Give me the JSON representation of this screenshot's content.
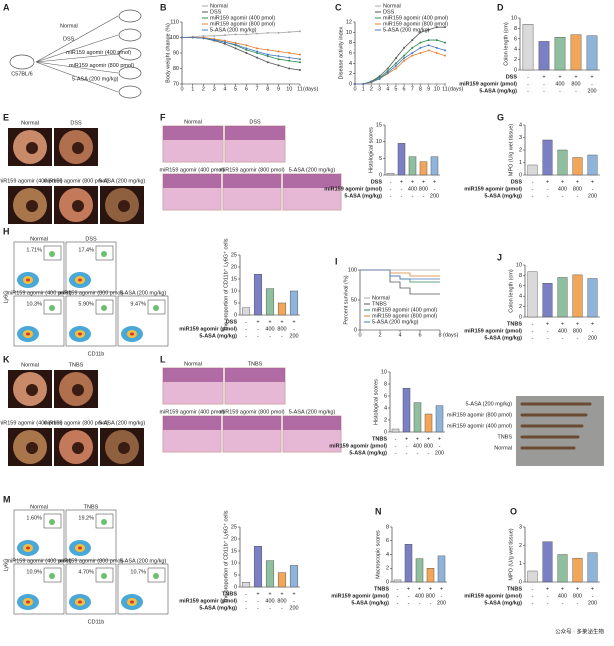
{
  "panel_letters": [
    "A",
    "B",
    "C",
    "D",
    "E",
    "F",
    "G",
    "H",
    "I",
    "J",
    "K",
    "L",
    "M",
    "N",
    "O"
  ],
  "schematic": {
    "mouse": "C57BL/6",
    "groups": [
      "Normal",
      "DSS",
      "miR159 agomir (400 pmol)",
      "miR159 agomir (800 pmol)",
      "5-ASA (200 mg/kg)"
    ]
  },
  "endoscopy_E": [
    "Normal",
    "DSS",
    "miR159 agomir (400 pmol)",
    "miR159 agomir (800 pmol)",
    "5-ASA (200 mg/kg)"
  ],
  "histology_F": [
    "Normal",
    "DSS",
    "miR159 agomir (400 pmol)",
    "miR159 agomir (800 pmol)",
    "5-ASA (200 mg/kg)"
  ],
  "flow_H": {
    "ylabel": "Ly6G",
    "xlabel": "CD11b",
    "plots": [
      {
        "label": "Normal",
        "pct": "1.71%"
      },
      {
        "label": "DSS",
        "pct": "17.4%"
      },
      {
        "label": "miR159 agomir (400 pmol)",
        "pct": "10.3%"
      },
      {
        "label": "miR159 agomir (800 pmol)",
        "pct": "5.90%"
      },
      {
        "label": "5-ASA (200 mg/kg)",
        "pct": "9.47%"
      }
    ]
  },
  "endoscopy_K": [
    "Normal",
    "TNBS",
    "miR159 agomir (400 pmol)",
    "miR159 agomir (800 pmol)",
    "5-ASA (200 mg/kg)"
  ],
  "histology_L": [
    "Normal",
    "TNBS",
    "miR159 agomir (400 pmol)",
    "miR159 agomir (800 pmol)",
    "5-ASA (200 mg/kg)"
  ],
  "photo_L": [
    "5-ASA (200 mg/kg)",
    "miR159 agomir (800 pmol)",
    "miR159 agomir (400 pmol)",
    "TNBS",
    "Normal"
  ],
  "flow_M": {
    "ylabel": "Ly6G",
    "xlabel": "CD11b",
    "plots": [
      {
        "label": "Normal",
        "pct": "1.60%"
      },
      {
        "label": "TNBS",
        "pct": "19.2%"
      },
      {
        "label": "miR159 agomir (400 pmol)",
        "pct": "10.9%"
      },
      {
        "label": "miR159 agomir (800 pmol)",
        "pct": "4.70%"
      },
      {
        "label": "5-ASA (200 mg/kg)",
        "pct": "10.7%"
      }
    ]
  },
  "watermark": "公众号 · 多莱泌生物",
  "chart_data": [
    {
      "type": "line",
      "ylabel": "Body weight change (%)",
      "xlabel": "(days)",
      "x": [
        0,
        1,
        2,
        3,
        4,
        5,
        6,
        7,
        8,
        9,
        10,
        11
      ],
      "xlim": [
        0,
        11
      ],
      "xticks": [
        0,
        1,
        2,
        3,
        4,
        5,
        6,
        7,
        8,
        9,
        10,
        11
      ],
      "ylim": [
        70,
        110
      ],
      "yticks": [
        70,
        80,
        90,
        100,
        110
      ],
      "series": [
        {
          "name": "Normal",
          "color": "#aaaaaa",
          "values": [
            100,
            100.5,
            101,
            101,
            101.5,
            102,
            102,
            102.5,
            103,
            103,
            103.5,
            104
          ]
        },
        {
          "name": "DSS",
          "color": "#555555",
          "values": [
            100,
            100,
            99.5,
            98,
            96,
            93,
            90,
            87,
            84,
            82,
            80,
            79
          ]
        },
        {
          "name": "miR159 agomir (400 pmol)",
          "color": "#2e8b57",
          "values": [
            100,
            100,
            99.5,
            98.5,
            97,
            95,
            92,
            90,
            88,
            86,
            85,
            84
          ]
        },
        {
          "name": "miR159 agomir (800 pmol)",
          "color": "#e08030",
          "values": [
            100,
            100,
            100,
            99,
            98,
            96.5,
            95,
            93,
            92,
            91,
            90,
            89
          ]
        },
        {
          "name": "5-ASA (200 mg/kg)",
          "color": "#4a78c0",
          "values": [
            100,
            100,
            99.5,
            98.5,
            97,
            95.5,
            93,
            91,
            89,
            88,
            87,
            86
          ]
        }
      ]
    },
    {
      "type": "line",
      "ylabel": "Disease activity index",
      "xlabel": "(days)",
      "x": [
        0,
        1,
        2,
        3,
        4,
        5,
        6,
        7,
        8,
        9,
        10,
        11
      ],
      "xlim": [
        0,
        11
      ],
      "xticks": [
        0,
        1,
        2,
        3,
        4,
        5,
        6,
        7,
        8,
        9,
        10,
        11
      ],
      "ylim": [
        0,
        12
      ],
      "yticks": [
        0,
        2,
        4,
        6,
        8,
        10,
        12
      ],
      "series": [
        {
          "name": "Normal",
          "color": "#aaaaaa",
          "values": [
            0,
            0,
            0,
            0,
            0,
            0,
            0,
            0,
            0,
            0,
            0,
            0
          ]
        },
        {
          "name": "DSS",
          "color": "#555555",
          "values": [
            0,
            0,
            0.5,
            1.5,
            3,
            5,
            7,
            8.5,
            10,
            10.5,
            11,
            11
          ]
        },
        {
          "name": "miR159 agomir (400 pmol)",
          "color": "#2e8b57",
          "values": [
            0,
            0,
            0.5,
            1.2,
            2.5,
            4,
            5.5,
            7,
            8,
            8.5,
            8.5,
            8
          ]
        },
        {
          "name": "miR159 agomir (800 pmol)",
          "color": "#e08030",
          "values": [
            0,
            0,
            0.3,
            1,
            2,
            3,
            4.5,
            5.5,
            6,
            6.5,
            6,
            5.5
          ]
        },
        {
          "name": "5-ASA (200 mg/kg)",
          "color": "#4a78c0",
          "values": [
            0,
            0,
            0.4,
            1,
            2.2,
            3.5,
            5,
            6,
            7,
            7.5,
            7,
            6.5
          ]
        }
      ]
    },
    {
      "type": "bar",
      "ylabel": "Colon length (cm)",
      "ylim": [
        0,
        10
      ],
      "yticks": [
        0,
        2,
        4,
        6,
        8,
        10
      ],
      "categories": [
        null,
        null,
        null,
        null,
        null
      ],
      "values": [
        8.8,
        5.5,
        6.3,
        6.8,
        6.6
      ],
      "colors": [
        "#d9d9d9",
        "#7b7fc4",
        "#8fbf9f",
        "#f2a65a",
        "#8fb3d9"
      ],
      "conditions": [
        {
          "label": "DSS",
          "cells": [
            "-",
            "+",
            "+",
            "+",
            "+"
          ]
        },
        {
          "label": "miR159 agomir (pmol)",
          "cells": [
            "-",
            "-",
            "400",
            "800",
            "-"
          ]
        },
        {
          "label": "5-ASA (mg/kg)",
          "cells": [
            "-",
            "-",
            "-",
            "-",
            "200"
          ]
        }
      ]
    },
    {
      "type": "bar",
      "ylabel": "Histological scores",
      "ylim": [
        0,
        15
      ],
      "yticks": [
        0,
        5,
        10,
        15
      ],
      "categories": [
        null,
        null,
        null,
        null,
        null
      ],
      "values": [
        0.5,
        9.5,
        5.5,
        4,
        5.5
      ],
      "colors": [
        "#d9d9d9",
        "#7b7fc4",
        "#8fbf9f",
        "#f2a65a",
        "#8fb3d9"
      ],
      "conditions": [
        {
          "label": "DSS",
          "cells": [
            "-",
            "+",
            "+",
            "+",
            "+"
          ]
        },
        {
          "label": "miR159 agomir (pmol)",
          "cells": [
            "-",
            "-",
            "400",
            "800",
            "-"
          ]
        },
        {
          "label": "5-ASA (mg/kg)",
          "cells": [
            "-",
            "-",
            "-",
            "-",
            "200"
          ]
        }
      ]
    },
    {
      "type": "bar",
      "ylabel": "MPO (U/g wet tissue)",
      "ylim": [
        0,
        4
      ],
      "yticks": [
        0,
        1,
        2,
        3,
        4
      ],
      "categories": [
        null,
        null,
        null,
        null,
        null
      ],
      "values": [
        0.8,
        2.8,
        2,
        1.4,
        1.6
      ],
      "colors": [
        "#d9d9d9",
        "#7b7fc4",
        "#8fbf9f",
        "#f2a65a",
        "#8fb3d9"
      ],
      "conditions": [
        {
          "label": "DSS",
          "cells": [
            "-",
            "+",
            "+",
            "+",
            "+"
          ]
        },
        {
          "label": "miR159 agomir (pmol)",
          "cells": [
            "-",
            "-",
            "400",
            "800",
            "-"
          ]
        },
        {
          "label": "5-ASA (mg/kg)",
          "cells": [
            "-",
            "-",
            "-",
            "-",
            "200"
          ]
        }
      ]
    },
    {
      "type": "bar",
      "ylabel": "The proportion of CD11b⁺ Ly6G⁺ cells",
      "ylim": [
        0,
        25
      ],
      "yticks": [
        0,
        5,
        10,
        15,
        20,
        25
      ],
      "categories": [
        null,
        null,
        null,
        null,
        null
      ],
      "values": [
        3,
        17,
        11,
        5,
        10
      ],
      "colors": [
        "#d9d9d9",
        "#7b7fc4",
        "#8fbf9f",
        "#f2a65a",
        "#8fb3d9"
      ],
      "conditions": [
        {
          "label": "DSS",
          "cells": [
            "-",
            "+",
            "+",
            "+",
            "+"
          ]
        },
        {
          "label": "miR159 agomir (pmol)",
          "cells": [
            "-",
            "-",
            "400",
            "800",
            "-"
          ]
        },
        {
          "label": "5-ASA (mg/kg)",
          "cells": [
            "-",
            "-",
            "-",
            "-",
            "200"
          ]
        }
      ]
    },
    {
      "type": "step",
      "ylabel": "Percent survival (%)",
      "xlabel": "(days)",
      "x": [
        0,
        1,
        2,
        3,
        4,
        5,
        6,
        7,
        8
      ],
      "xlim": [
        0,
        8
      ],
      "xticks": [
        0,
        2,
        4,
        6,
        8
      ],
      "ylim": [
        0,
        100
      ],
      "yticks": [
        0,
        50,
        100
      ],
      "series": [
        {
          "name": "Normal",
          "color": "#aaaaaa",
          "values": [
            100,
            100,
            100,
            100,
            100,
            100,
            100,
            100,
            100
          ]
        },
        {
          "name": "TNBS",
          "color": "#555555",
          "values": [
            100,
            100,
            100,
            80,
            70,
            60,
            60,
            60,
            60
          ]
        },
        {
          "name": "miR159 agomir (400 pmol)",
          "color": "#2e8b57",
          "values": [
            100,
            100,
            100,
            90,
            85,
            80,
            80,
            80,
            80
          ]
        },
        {
          "name": "miR159 agomir (800 pmol)",
          "color": "#e08030",
          "values": [
            100,
            100,
            100,
            95,
            95,
            90,
            90,
            90,
            90
          ]
        },
        {
          "name": "5-ASA (200 mg/kg)",
          "color": "#4a78c0",
          "values": [
            100,
            100,
            100,
            90,
            85,
            85,
            85,
            85,
            85
          ]
        }
      ]
    },
    {
      "type": "bar",
      "ylabel": "Colon length (cm)",
      "ylim": [
        0,
        10
      ],
      "yticks": [
        0,
        2,
        4,
        6,
        8,
        10
      ],
      "categories": [
        null,
        null,
        null,
        null,
        null
      ],
      "values": [
        8.7,
        6.5,
        7.6,
        8.1,
        7.4
      ],
      "colors": [
        "#d9d9d9",
        "#7b7fc4",
        "#8fbf9f",
        "#f2a65a",
        "#8fb3d9"
      ],
      "conditions": [
        {
          "label": "TNBS",
          "cells": [
            "-",
            "+",
            "+",
            "+",
            "+"
          ]
        },
        {
          "label": "miR159 agomir (pmol)",
          "cells": [
            "-",
            "-",
            "400",
            "800",
            "-"
          ]
        },
        {
          "label": "5-ASA (mg/kg)",
          "cells": [
            "-",
            "-",
            "-",
            "-",
            "200"
          ]
        }
      ]
    },
    {
      "type": "bar",
      "ylabel": "Histological scores",
      "ylim": [
        0,
        10
      ],
      "yticks": [
        0,
        2,
        4,
        6,
        8,
        10
      ],
      "categories": [
        null,
        null,
        null,
        null,
        null
      ],
      "values": [
        0.5,
        7.3,
        4.9,
        3,
        4.4
      ],
      "colors": [
        "#d9d9d9",
        "#7b7fc4",
        "#8fbf9f",
        "#f2a65a",
        "#8fb3d9"
      ],
      "conditions": [
        {
          "label": "TNBS",
          "cells": [
            "-",
            "+",
            "+",
            "+",
            "+"
          ]
        },
        {
          "label": "miR159 agomir (pmol)",
          "cells": [
            "-",
            "-",
            "400",
            "800",
            "-"
          ]
        },
        {
          "label": "5-ASA (mg/kg)",
          "cells": [
            "-",
            "-",
            "-",
            "-",
            "200"
          ]
        }
      ]
    },
    {
      "type": "bar",
      "ylabel": "The proportion of CD11b⁺ Ly6G⁺ cells",
      "ylim": [
        0,
        25
      ],
      "yticks": [
        0,
        5,
        10,
        15,
        20,
        25
      ],
      "categories": [
        null,
        null,
        null,
        null,
        null
      ],
      "values": [
        2,
        17,
        11,
        6,
        9
      ],
      "colors": [
        "#d9d9d9",
        "#7b7fc4",
        "#8fbf9f",
        "#f2a65a",
        "#8fb3d9"
      ],
      "conditions": [
        {
          "label": "TNBS",
          "cells": [
            "-",
            "+",
            "+",
            "+",
            "+"
          ]
        },
        {
          "label": "miR159 agomir (pmol)",
          "cells": [
            "-",
            "-",
            "400",
            "800",
            "-"
          ]
        },
        {
          "label": "5-ASA (mg/kg)",
          "cells": [
            "-",
            "-",
            "-",
            "-",
            "200"
          ]
        }
      ]
    },
    {
      "type": "bar",
      "ylabel": "Macroscopic scores",
      "ylim": [
        0,
        8
      ],
      "yticks": [
        0,
        2,
        4,
        6,
        8
      ],
      "categories": [
        null,
        null,
        null,
        null,
        null
      ],
      "values": [
        0.3,
        5.5,
        3.4,
        2,
        3.8
      ],
      "colors": [
        "#d9d9d9",
        "#7b7fc4",
        "#8fbf9f",
        "#f2a65a",
        "#8fb3d9"
      ],
      "conditions": [
        {
          "label": "TNBS",
          "cells": [
            "-",
            "+",
            "+",
            "+",
            "+"
          ]
        },
        {
          "label": "miR159 agomir (pmol)",
          "cells": [
            "-",
            "-",
            "400",
            "800",
            "-"
          ]
        },
        {
          "label": "5-ASA (mg/kg)",
          "cells": [
            "-",
            "-",
            "-",
            "-",
            "200"
          ]
        }
      ]
    },
    {
      "type": "bar",
      "ylabel": "MPO (U/g wet tissue)",
      "ylim": [
        0,
        3
      ],
      "yticks": [
        0,
        1,
        2,
        3
      ],
      "categories": [
        null,
        null,
        null,
        null,
        null
      ],
      "values": [
        0.6,
        2.2,
        1.5,
        1.3,
        1.6
      ],
      "colors": [
        "#d9d9d9",
        "#7b7fc4",
        "#8fbf9f",
        "#f2a65a",
        "#8fb3d9"
      ],
      "conditions": [
        {
          "label": "TNBS",
          "cells": [
            "-",
            "+",
            "+",
            "+",
            "+"
          ]
        },
        {
          "label": "miR159 agomir (pmol)",
          "cells": [
            "-",
            "-",
            "400",
            "800",
            "-"
          ]
        },
        {
          "label": "5-ASA (mg/kg)",
          "cells": [
            "-",
            "-",
            "-",
            "-",
            "200"
          ]
        }
      ]
    }
  ]
}
